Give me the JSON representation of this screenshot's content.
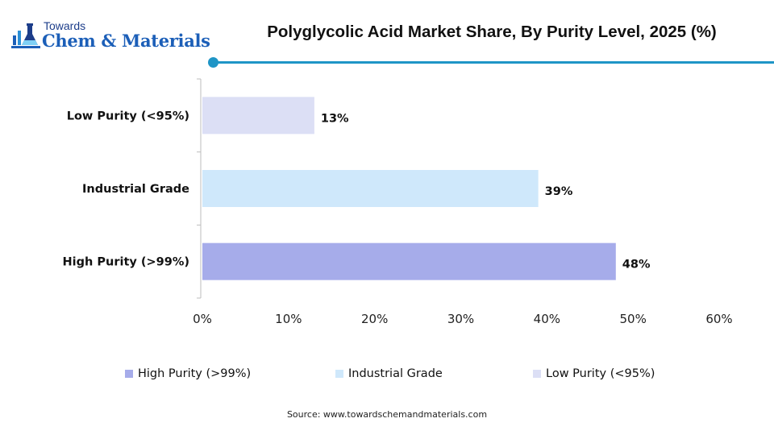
{
  "brand": {
    "top": "Towards",
    "main": "Chem & Materials"
  },
  "colors": {
    "accent": "#1f95c6",
    "brand_blue": "#1c5fb8"
  },
  "source": "Source:  www.towardschemandmaterials.com",
  "chart_data": {
    "type": "bar",
    "orientation": "horizontal",
    "title": "Polyglycolic Acid Market Share, By Purity Level, 2025 (%)",
    "categories": [
      "Low Purity (<95%)",
      "Industrial Grade",
      "High Purity (>99%)"
    ],
    "values": [
      13,
      39,
      48
    ],
    "value_labels": [
      "13%",
      "39%",
      "48%"
    ],
    "colors": [
      "#dcdff5",
      "#cfe8fb",
      "#a6acea"
    ],
    "xlim": [
      0,
      60
    ],
    "xticks": [
      0,
      10,
      20,
      30,
      40,
      50,
      60
    ],
    "xtick_labels": [
      "0%",
      "10%",
      "20%",
      "30%",
      "40%",
      "50%",
      "60%"
    ],
    "grid": false,
    "legend": {
      "position": "bottom",
      "entries": [
        {
          "label": "High Purity (>99%)",
          "color": "#a6acea"
        },
        {
          "label": "Industrial Grade",
          "color": "#cfe8fb"
        },
        {
          "label": "Low Purity (<95%)",
          "color": "#dcdff5"
        }
      ]
    }
  }
}
